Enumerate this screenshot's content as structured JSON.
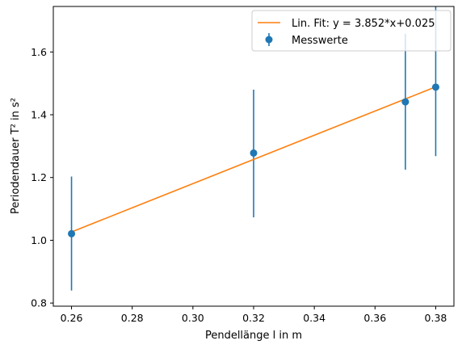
{
  "chart_data": {
    "type": "scatter",
    "xlabel": "Pendellänge l in m",
    "ylabel": "Periodendauer T² in s²",
    "xlim": [
      0.254,
      0.386
    ],
    "ylim": [
      0.79,
      1.745
    ],
    "x_ticks": [
      0.26,
      0.28,
      0.3,
      0.32,
      0.34,
      0.36,
      0.38
    ],
    "x_tick_labels": [
      "0.26",
      "0.28",
      "0.30",
      "0.32",
      "0.34",
      "0.36",
      "0.38"
    ],
    "y_ticks": [
      0.8,
      1.0,
      1.2,
      1.4,
      1.6
    ],
    "y_tick_labels": [
      "0.8",
      "1.0",
      "1.2",
      "1.4",
      "1.6"
    ],
    "grid": false,
    "legend_position": "top-right",
    "series": [
      {
        "name": "Messwerte",
        "kind": "errorbar",
        "color": "#1f77b4",
        "points": [
          {
            "x": 0.26,
            "y": 1.021,
            "yerr_low": 0.84,
            "yerr_high": 1.203
          },
          {
            "x": 0.32,
            "y": 1.278,
            "yerr_low": 1.073,
            "yerr_high": 1.48
          },
          {
            "x": 0.37,
            "y": 1.441,
            "yerr_low": 1.225,
            "yerr_high": 1.658
          },
          {
            "x": 0.38,
            "y": 1.488,
            "yerr_low": 1.268,
            "yerr_high": 1.745
          }
        ]
      },
      {
        "name": "Lin. Fit: y = 3.852*x+0.025",
        "kind": "line",
        "color": "#ff7f0e",
        "slope": 3.852,
        "intercept": 0.025,
        "x_range": [
          0.26,
          0.38
        ]
      }
    ]
  }
}
